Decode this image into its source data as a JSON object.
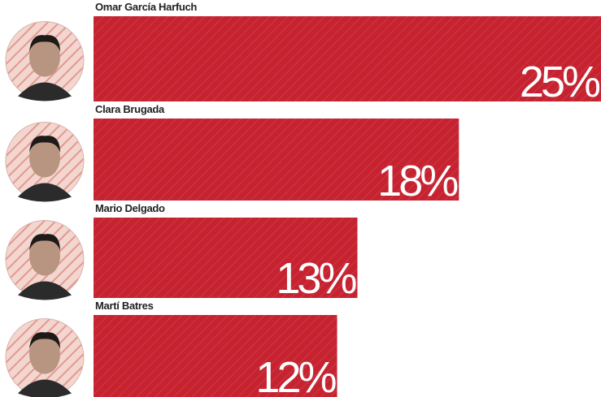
{
  "chart_data": {
    "type": "bar",
    "orientation": "horizontal",
    "categories": [
      "Omar García Harfuch",
      "Clara Brugada",
      "Mario Delgado",
      "Martí Batres"
    ],
    "values": [
      25,
      18,
      13,
      12
    ],
    "value_labels": [
      "25%",
      "18%",
      "13%",
      "12%"
    ],
    "color": "#c62230"
  }
}
